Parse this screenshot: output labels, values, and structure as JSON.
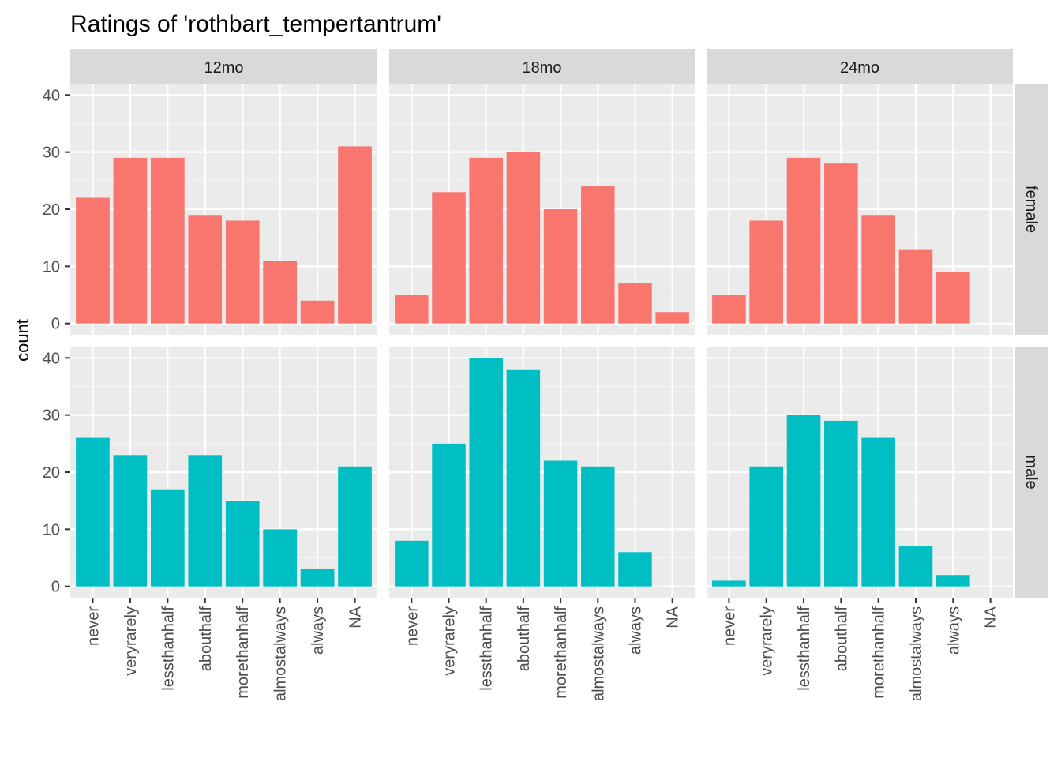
{
  "chart_data": {
    "type": "bar",
    "title": "Ratings of 'rothbart_tempertantrum'",
    "ylabel": "count",
    "xlabel": "",
    "ylim": [
      0,
      40
    ],
    "y_ticks": [
      0,
      10,
      20,
      30,
      40
    ],
    "categories": [
      "never",
      "veryrarely",
      "lessthanhalf",
      "abouthalf",
      "morethanhalf",
      "almostalways",
      "always",
      "NA"
    ],
    "facet_columns": [
      "12mo",
      "18mo",
      "24mo"
    ],
    "facet_rows": [
      "female",
      "male"
    ],
    "colors": {
      "female": "#F8766D",
      "male": "#00BFC4"
    },
    "panel_background": "#EBEBEB",
    "strip_background": "#D9D9D9",
    "grid": true,
    "legend": "none",
    "series": [
      {
        "name": "female",
        "column": "12mo",
        "values": [
          22,
          29,
          29,
          19,
          18,
          11,
          4,
          31
        ]
      },
      {
        "name": "female",
        "column": "18mo",
        "values": [
          5,
          23,
          29,
          30,
          20,
          24,
          7,
          2
        ]
      },
      {
        "name": "female",
        "column": "24mo",
        "values": [
          5,
          18,
          29,
          28,
          19,
          13,
          9,
          0
        ]
      },
      {
        "name": "male",
        "column": "12mo",
        "values": [
          26,
          23,
          17,
          23,
          15,
          10,
          3,
          21
        ]
      },
      {
        "name": "male",
        "column": "18mo",
        "values": [
          8,
          25,
          40,
          38,
          22,
          21,
          6,
          0
        ]
      },
      {
        "name": "male",
        "column": "24mo",
        "values": [
          1,
          21,
          30,
          29,
          26,
          7,
          2,
          0
        ]
      }
    ]
  }
}
